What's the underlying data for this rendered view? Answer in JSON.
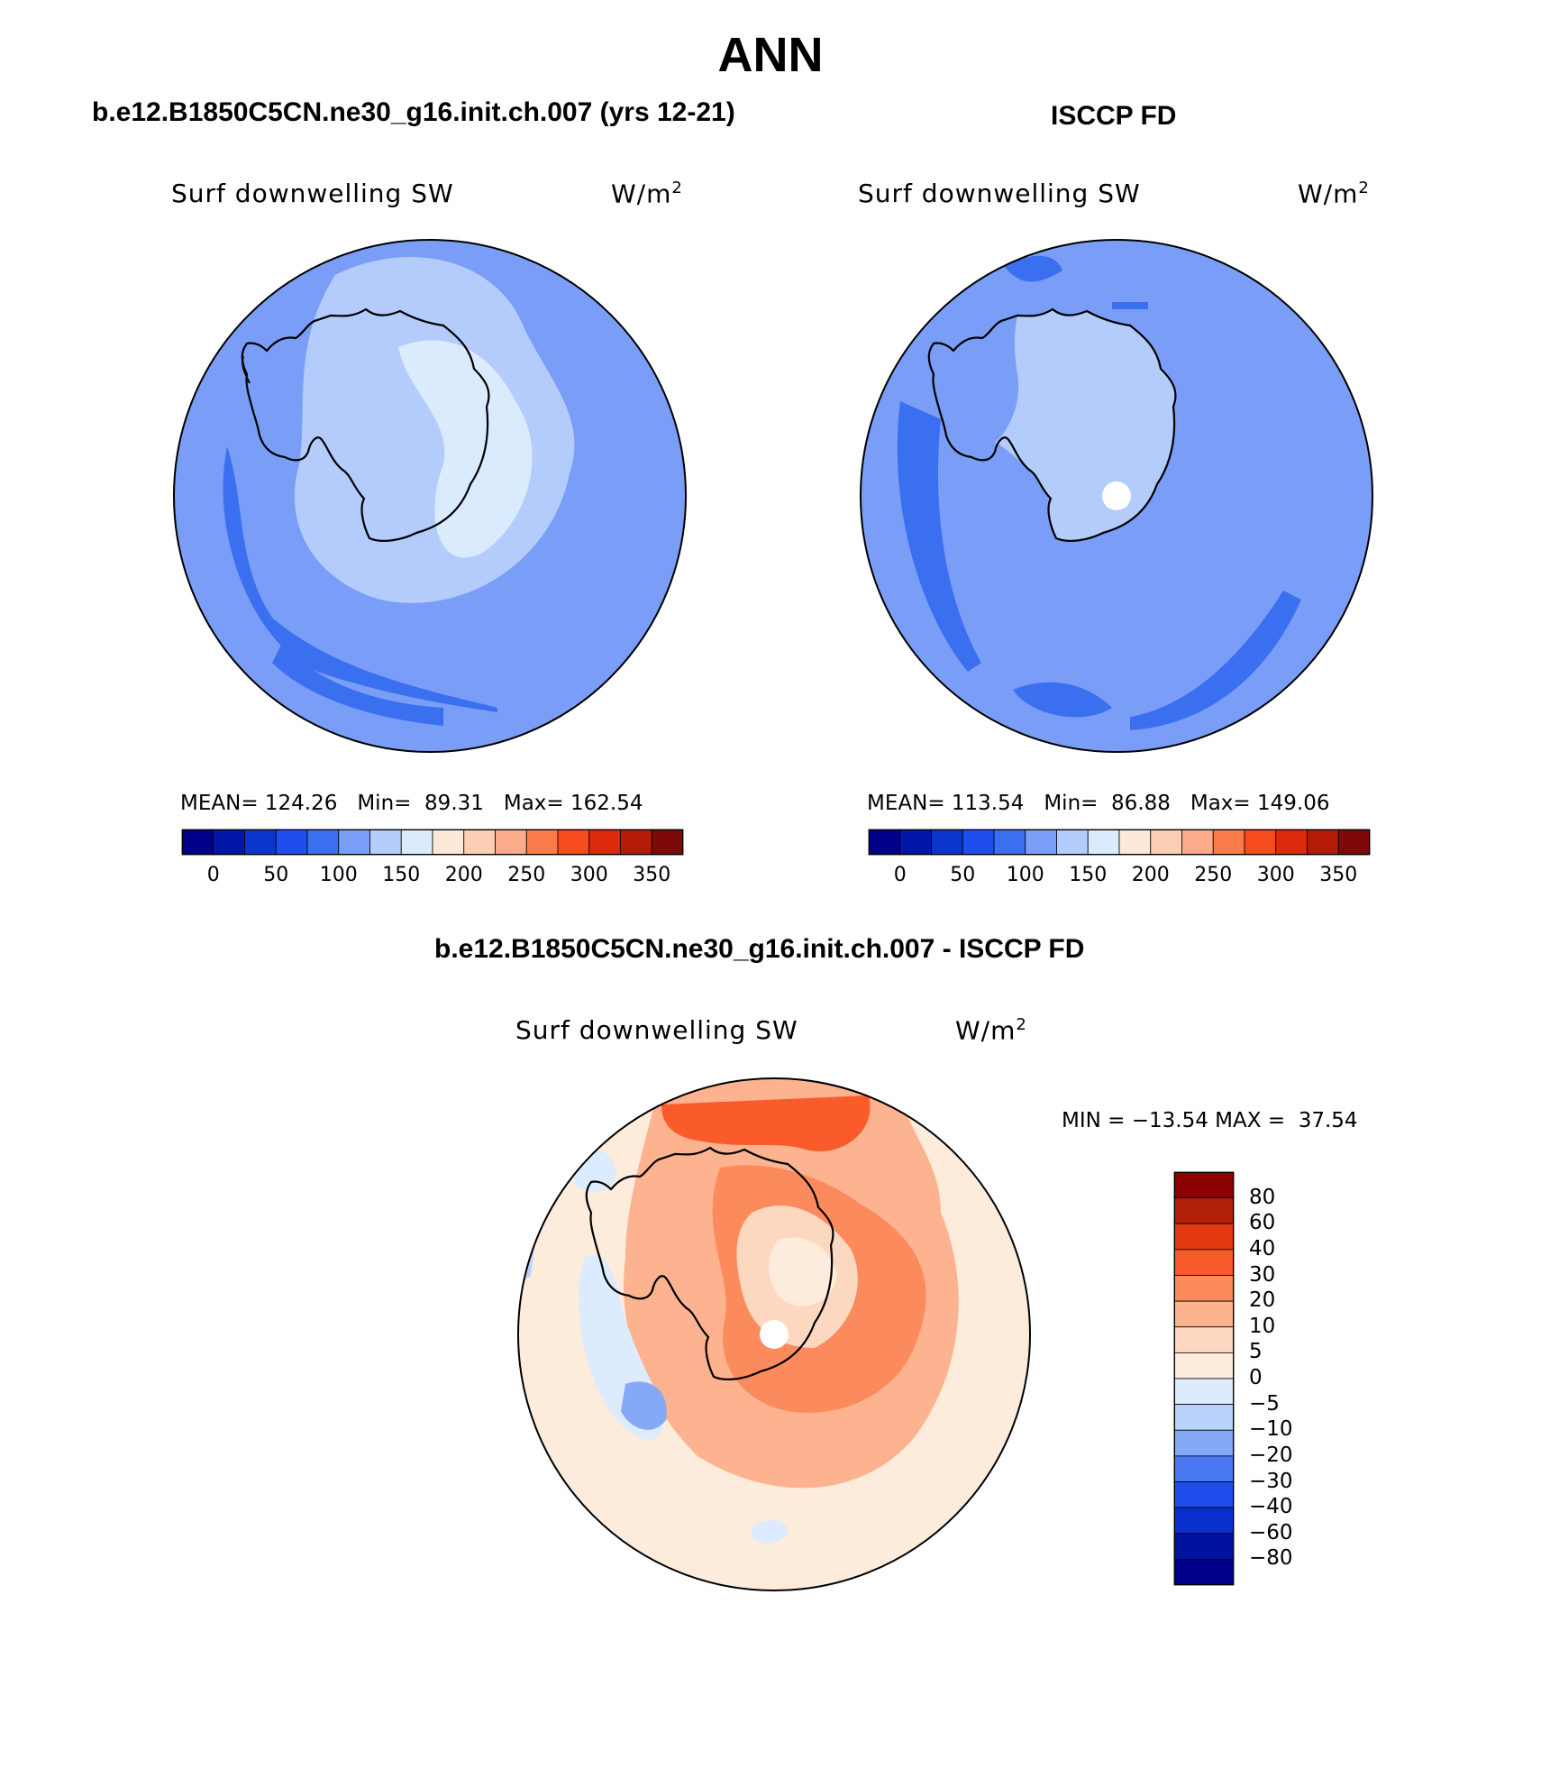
{
  "page_title": "ANN",
  "panels": [
    {
      "title": "b.e12.B1850C5CN.ne30_g16.init.ch.007 (yrs 12-21)",
      "variable": "Surf downwelling SW",
      "units": "W/m",
      "units_exp": "2",
      "mean_label": "MEAN=",
      "mean": "124.26",
      "min_label": "Min=",
      "min": "89.31",
      "max_label": "Max=",
      "max": "162.54"
    },
    {
      "title": "ISCCP FD",
      "variable": "Surf downwelling SW",
      "units": "W/m",
      "units_exp": "2",
      "mean_label": "MEAN=",
      "mean": "113.54",
      "min_label": "Min=",
      "min": "86.88",
      "max_label": "Max=",
      "max": "149.06"
    }
  ],
  "colorbar": {
    "colors": [
      "#00008b",
      "#0017a8",
      "#0a36cf",
      "#1e4fed",
      "#3a6ff0",
      "#7a9ef7",
      "#b3ccfb",
      "#dbebfe",
      "#fde9d8",
      "#fcceb6",
      "#fcab8b",
      "#fb7b4a",
      "#f64a1f",
      "#dd2a0c",
      "#b41c08",
      "#7f0808"
    ],
    "labels": [
      "0",
      "50",
      "100",
      "150",
      "200",
      "250",
      "300",
      "350"
    ]
  },
  "diff": {
    "title": "b.e12.B1850C5CN.ne30_g16.init.ch.007 - ISCCP FD",
    "variable": "Surf downwelling SW",
    "units": "W/m",
    "units_exp": "2",
    "min_label": "MIN =",
    "min": "−13.54",
    "max_label": "MAX =",
    "max": "37.54",
    "colorbar_colors": [
      "#8b0000",
      "#b3200a",
      "#e23a10",
      "#f95b2a",
      "#fb8a5c",
      "#fdb38f",
      "#fdd8c0",
      "#fdebdc",
      "#dcebfd",
      "#b8d2fb",
      "#85a9f6",
      "#4a78f0",
      "#1d4ded",
      "#0a2fcd",
      "#00129f",
      "#00008b"
    ],
    "labels": [
      "80",
      "60",
      "40",
      "30",
      "20",
      "10",
      "5",
      "0",
      "−5",
      "−10",
      "−20",
      "−30",
      "−40",
      "−60",
      "−80"
    ]
  }
}
